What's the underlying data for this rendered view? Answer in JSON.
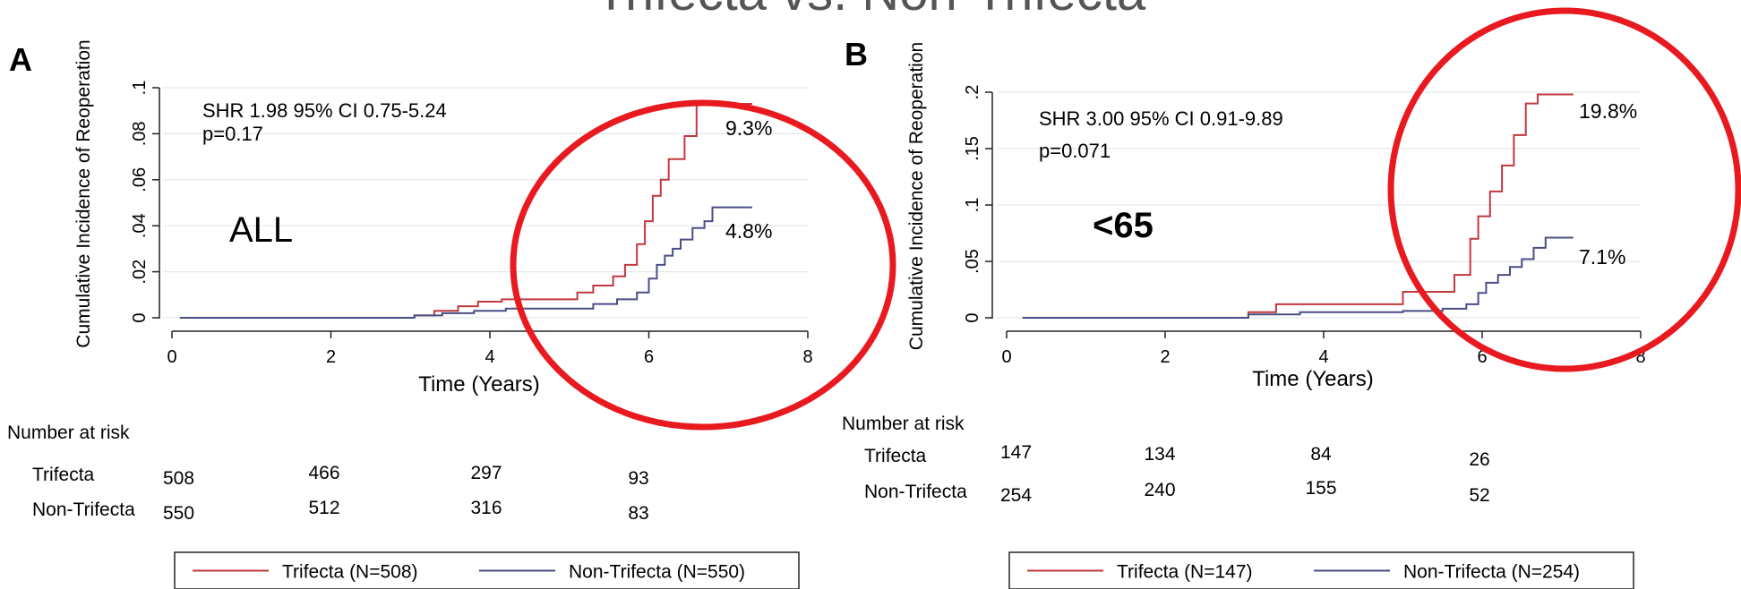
{
  "slide_title": "Trifecta vs. Non-Trifecta",
  "chart_data": [
    {
      "type": "line",
      "panel_label": "A",
      "subgroup_label": "ALL",
      "ylabel": "Cumulative Incidence of Reoperation",
      "xlabel": "Time (Years)",
      "xlim": [
        0,
        8
      ],
      "ylim": [
        0,
        0.1
      ],
      "xticks": [
        0,
        2,
        4,
        6,
        8
      ],
      "xtick_labels": [
        "0",
        "2",
        "4",
        "6",
        "8"
      ],
      "yticks": [
        0,
        0.02,
        0.04,
        0.06,
        0.08,
        0.1
      ],
      "ytick_labels": [
        "0",
        ".02",
        ".04",
        ".06",
        ".08",
        ".1"
      ],
      "grid": true,
      "stats_line1": "SHR 1.98  95% CI 0.75-5.24",
      "stats_line2": "p=0.17",
      "series": [
        {
          "name": "Trifecta (N=508)",
          "color": "#c0393f",
          "end_label": "9.3%",
          "x": [
            0.1,
            3.05,
            3.3,
            3.6,
            3.85,
            4.15,
            5.0,
            5.1,
            5.3,
            5.55,
            5.7,
            5.85,
            5.95,
            6.05,
            6.15,
            6.25,
            6.45,
            6.6,
            6.8,
            7.3
          ],
          "y": [
            0,
            0.001,
            0.003,
            0.005,
            0.007,
            0.008,
            0.008,
            0.011,
            0.014,
            0.018,
            0.023,
            0.032,
            0.042,
            0.053,
            0.06,
            0.069,
            0.079,
            0.093,
            0.093,
            0.093
          ]
        },
        {
          "name": "Non-Trifecta (N=550)",
          "color": "#4a4e85",
          "end_label": "4.8%",
          "x": [
            0.1,
            3.05,
            3.4,
            3.8,
            4.2,
            5.0,
            5.3,
            5.6,
            5.85,
            6.0,
            6.1,
            6.2,
            6.3,
            6.4,
            6.55,
            6.7,
            6.8,
            7.3
          ],
          "y": [
            0,
            0.001,
            0.002,
            0.003,
            0.004,
            0.004,
            0.006,
            0.008,
            0.011,
            0.017,
            0.023,
            0.027,
            0.03,
            0.034,
            0.039,
            0.042,
            0.048,
            0.048
          ]
        }
      ],
      "risk_table": {
        "title": "Number at risk",
        "rows": [
          {
            "label": "Trifecta",
            "values": [
              "508",
              "466",
              "297",
              "93"
            ]
          },
          {
            "label": "Non-Trifecta",
            "values": [
              "550",
              "512",
              "316",
              "83"
            ]
          }
        ]
      },
      "legend_position": "bottom"
    },
    {
      "type": "line",
      "panel_label": "B",
      "subgroup_label": "<65",
      "ylabel": "Cumulative Incidence of Reoperation",
      "xlabel": "Time (Years)",
      "xlim": [
        0,
        8
      ],
      "ylim": [
        0,
        0.2
      ],
      "xticks": [
        0,
        2,
        4,
        6,
        8
      ],
      "xtick_labels": [
        "0",
        "2",
        "4",
        "6",
        "8"
      ],
      "yticks": [
        0,
        0.05,
        0.1,
        0.15,
        0.2
      ],
      "ytick_labels": [
        "0",
        ".05",
        ".1",
        ".15",
        ".2"
      ],
      "grid": true,
      "stats_line1": "SHR 3.00  95% CI 0.91-9.89",
      "stats_line2": "p=0.071",
      "series": [
        {
          "name": "Trifecta (N=147)",
          "color": "#c0393f",
          "end_label": "19.8%",
          "x": [
            0.2,
            3.05,
            3.4,
            5.0,
            5.65,
            5.85,
            5.95,
            6.1,
            6.25,
            6.4,
            6.55,
            6.7,
            6.85,
            7.15
          ],
          "y": [
            0,
            0.005,
            0.012,
            0.023,
            0.038,
            0.07,
            0.09,
            0.112,
            0.135,
            0.162,
            0.19,
            0.198,
            0.198,
            0.198
          ],
          "stroke_note": ""
        },
        {
          "name": "Non-Trifecta (N=254)",
          "color": "#4a4e85",
          "end_label": "7.1%",
          "x": [
            0.2,
            3.05,
            3.7,
            5.0,
            5.5,
            5.8,
            5.95,
            6.05,
            6.2,
            6.35,
            6.5,
            6.65,
            6.8,
            7.15
          ],
          "y": [
            0,
            0.003,
            0.005,
            0.006,
            0.008,
            0.012,
            0.022,
            0.031,
            0.038,
            0.045,
            0.052,
            0.062,
            0.071,
            0.071
          ]
        }
      ],
      "risk_table": {
        "title": "Number at risk",
        "rows": [
          {
            "label": "Trifecta",
            "values": [
              "147",
              "134",
              "84",
              "26"
            ]
          },
          {
            "label": "Non-Trifecta",
            "values": [
              "254",
              "240",
              "155",
              "52"
            ]
          }
        ]
      },
      "legend_position": "bottom"
    }
  ],
  "highlight_color": "#e8191f"
}
